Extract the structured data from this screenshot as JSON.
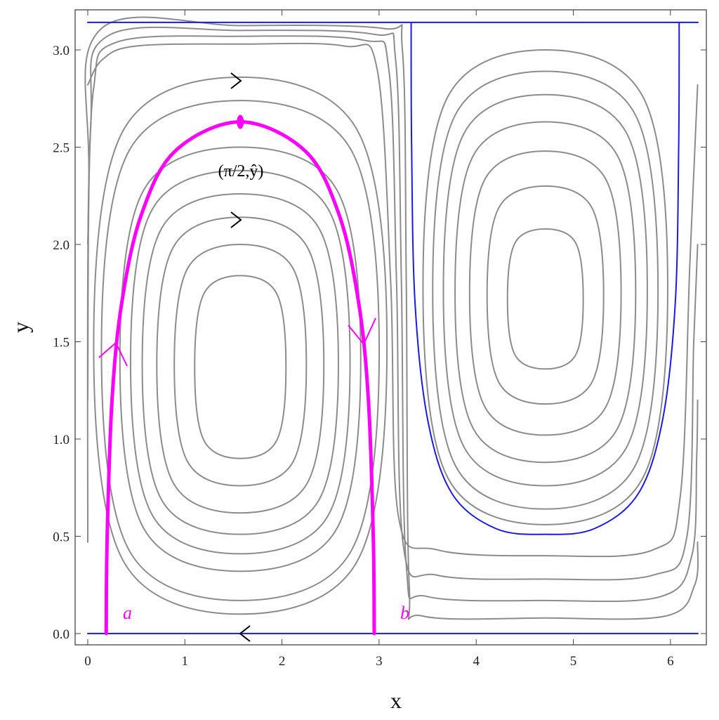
{
  "chart_data": {
    "type": "line",
    "xlabel": "x",
    "ylabel": "y",
    "xlim": [
      -0.13,
      6.37
    ],
    "ylim": [
      -0.058,
      3.206
    ],
    "xticks": [
      0,
      1,
      2,
      3,
      4,
      5,
      6
    ],
    "yticks": [
      {
        "value": 0,
        "label": "0.0"
      },
      {
        "value": 0.5,
        "label": "0.5"
      },
      {
        "value": 1,
        "label": "1.0"
      },
      {
        "value": 1.5,
        "label": "1.5"
      },
      {
        "value": 2,
        "label": "2.0"
      },
      {
        "value": 2.5,
        "label": "2.5"
      },
      {
        "value": 3,
        "label": "3.0"
      }
    ],
    "annotations": [
      "a",
      "b"
    ],
    "marked_point": {
      "x": 1.571,
      "y": 2.63,
      "label": "(π/2,ŷ)",
      "color": "#ff00ff"
    },
    "series": [
      {
        "color": "#8c8c8c",
        "width": 2,
        "closed": true,
        "x": [
          2.041,
          1.947,
          1.571,
          1.195,
          1.101,
          1.195,
          1.571,
          1.947
        ],
        "y": [
          1.37,
          1.746,
          1.84,
          1.746,
          1.37,
          0.994,
          0.9,
          0.994
        ]
      },
      {
        "color": "#8c8c8c",
        "width": 2,
        "closed": true,
        "x": [
          2.251,
          2.115,
          1.571,
          1.027,
          0.891,
          1.027,
          1.571,
          2.115
        ],
        "y": [
          1.38,
          1.876,
          2.0,
          1.876,
          1.38,
          0.884,
          0.76,
          0.884
        ]
      },
      {
        "color": "#8c8c8c",
        "width": 2,
        "closed": true,
        "x": [
          2.431,
          2.259,
          1.571,
          0.883,
          0.711,
          0.883,
          1.571,
          2.259
        ],
        "y": [
          1.38,
          1.988,
          2.14,
          1.988,
          1.38,
          0.772,
          0.62,
          0.772
        ]
      },
      {
        "color": "#8c8c8c",
        "width": 2,
        "closed": true,
        "x": [
          2.581,
          2.379,
          1.571,
          0.763,
          0.561,
          0.763,
          1.571,
          2.379
        ],
        "y": [
          1.385,
          2.085,
          2.26,
          2.085,
          1.385,
          0.685,
          0.51,
          0.685
        ]
      },
      {
        "color": "#8c8c8c",
        "width": 2,
        "closed": true,
        "x": [
          2.701,
          2.475,
          1.571,
          0.667,
          0.441,
          0.667,
          1.571,
          2.475
        ],
        "y": [
          1.395,
          2.183,
          2.38,
          2.183,
          1.395,
          0.607,
          0.41,
          0.607
        ]
      },
      {
        "color": "#8c8c8c",
        "width": 2,
        "closed": true,
        "x": [
          2.811,
          2.563,
          1.571,
          0.579,
          0.331,
          0.579,
          1.571,
          2.563
        ],
        "y": [
          1.41,
          2.282,
          2.5,
          2.282,
          1.41,
          0.538,
          0.32,
          0.538
        ]
      },
      {
        "color": "#8c8c8c",
        "width": 2,
        "closed": true,
        "x": [
          3.001,
          2.715,
          1.571,
          0.427,
          0.141,
          0.427,
          1.571,
          2.715
        ],
        "y": [
          1.455,
          2.483,
          2.74,
          2.483,
          1.455,
          0.427,
          0.17,
          0.427
        ]
      },
      {
        "color": "#8c8c8c",
        "width": 2,
        "closed": true,
        "x": [
          3.081,
          2.779,
          1.571,
          0.363,
          0.061,
          0.363,
          1.571,
          2.779
        ],
        "y": [
          1.48,
          2.584,
          2.86,
          2.584,
          1.48,
          0.376,
          0.1,
          0.376
        ]
      },
      {
        "color": "#8c8c8c",
        "width": 2,
        "closed": true,
        "x": [
          5.102,
          5.024,
          4.712,
          4.4,
          4.322,
          4.4,
          4.712,
          5.024
        ],
        "y": [
          1.72,
          2.008,
          2.08,
          2.008,
          1.72,
          1.432,
          1.36,
          1.432
        ]
      },
      {
        "color": "#8c8c8c",
        "width": 2,
        "closed": true,
        "x": [
          5.312,
          5.192,
          4.712,
          4.232,
          4.112,
          4.232,
          4.712,
          5.192
        ],
        "y": [
          1.74,
          2.188,
          2.3,
          2.188,
          1.74,
          1.292,
          1.18,
          1.292
        ]
      },
      {
        "color": "#8c8c8c",
        "width": 2,
        "closed": true,
        "x": [
          5.492,
          5.336,
          4.712,
          4.088,
          3.932,
          4.088,
          4.712,
          5.336
        ],
        "y": [
          1.75,
          2.334,
          2.48,
          2.334,
          1.75,
          1.166,
          1.02,
          1.166
        ]
      },
      {
        "color": "#8c8c8c",
        "width": 2,
        "closed": true,
        "x": [
          5.642,
          5.456,
          4.712,
          3.968,
          3.782,
          3.968,
          4.712,
          5.456
        ],
        "y": [
          1.755,
          2.455,
          2.63,
          2.455,
          1.755,
          1.055,
          0.88,
          1.055
        ]
      },
      {
        "color": "#8c8c8c",
        "width": 2,
        "closed": true,
        "x": [
          5.762,
          5.552,
          4.712,
          3.872,
          3.662,
          3.872,
          4.712,
          5.552
        ],
        "y": [
          1.765,
          2.569,
          2.77,
          2.569,
          1.765,
          0.961,
          0.76,
          0.961
        ]
      },
      {
        "color": "#8c8c8c",
        "width": 2,
        "closed": true,
        "x": [
          5.872,
          5.64,
          4.712,
          3.784,
          3.552,
          3.784,
          4.712,
          5.64
        ],
        "y": [
          1.765,
          2.665,
          2.89,
          2.665,
          1.765,
          0.865,
          0.64,
          0.865
        ]
      },
      {
        "color": "#8c8c8c",
        "width": 2,
        "closed": true,
        "x": [
          5.972,
          5.72,
          4.712,
          3.704,
          3.452,
          3.704,
          4.712,
          5.72
        ],
        "y": [
          1.78,
          2.756,
          3.0,
          2.756,
          1.78,
          0.804,
          0.56,
          0.804
        ]
      },
      {
        "color": "#8c8c8c",
        "width": 2,
        "closed": false,
        "x": [
          0,
          0.15,
          0.5,
          1.571,
          2.64,
          2.98,
          3.12,
          3.2,
          3.6,
          4.712,
          5.82,
          6.1,
          6.2,
          6.28
        ],
        "y": [
          2.82,
          2.95,
          3.02,
          3.03,
          3.02,
          2.9,
          1.8,
          0.6,
          0.43,
          0.4,
          0.43,
          0.7,
          1.9,
          2.82
        ]
      },
      {
        "color": "#8c8c8c",
        "width": 2,
        "closed": false,
        "x": [
          0,
          0.06,
          0.3,
          1.571,
          2.84,
          3.1,
          3.18,
          3.25,
          3.6,
          4.712,
          5.82,
          6.17,
          6.24,
          6.28
        ],
        "y": [
          2.0,
          2.8,
          3.04,
          3.07,
          3.05,
          2.9,
          1.8,
          0.45,
          0.3,
          0.28,
          0.3,
          0.5,
          1.5,
          2.0
        ]
      },
      {
        "color": "#8c8c8c",
        "width": 2,
        "closed": false,
        "x": [
          0,
          0.03,
          0.2,
          1.571,
          2.95,
          3.17,
          3.23,
          3.28,
          3.5,
          4.712,
          5.9,
          6.22,
          6.27,
          6.28
        ],
        "y": [
          1.2,
          2.6,
          3.07,
          3.1,
          3.08,
          2.95,
          1.8,
          0.35,
          0.19,
          0.17,
          0.19,
          0.4,
          0.9,
          1.2
        ]
      },
      {
        "color": "#8c8c8c",
        "width": 2,
        "closed": false,
        "x": [
          0,
          0.01,
          0.12,
          1.571,
          3.05,
          3.24,
          3.28,
          3.31,
          3.45,
          4.712,
          5.95,
          6.25,
          6.28
        ],
        "y": [
          0.47,
          2.3,
          3.1,
          3.125,
          3.11,
          3.0,
          1.8,
          0.25,
          0.09,
          0.08,
          0.09,
          0.25,
          0.47
        ]
      },
      {
        "color": "#1a1ae6",
        "width": 2,
        "closed": false,
        "x": [
          0,
          6.283
        ],
        "y": [
          3.1416,
          3.1416
        ]
      },
      {
        "color": "#1a1ae6",
        "width": 2,
        "closed": false,
        "x": [
          0,
          6.283
        ],
        "y": [
          0,
          0
        ]
      },
      {
        "color": "#1a1ae6",
        "width": 2,
        "closed": false,
        "x": [
          3.33,
          3.335,
          3.37,
          3.5,
          3.75,
          4.2,
          4.712,
          5.22,
          5.67,
          5.92,
          6.05,
          6.085,
          6.09
        ],
        "y": [
          3.1416,
          2.5,
          1.7,
          1.1,
          0.72,
          0.54,
          0.51,
          0.54,
          0.72,
          1.1,
          1.7,
          2.5,
          3.1416
        ]
      },
      {
        "color": "#ff00ff",
        "width": 5,
        "closed": false,
        "x": [
          0.19,
          0.2,
          0.25,
          0.35,
          0.55,
          0.9,
          1.571,
          2.24,
          2.59,
          2.79,
          2.89,
          2.94,
          2.95
        ],
        "y": [
          0,
          0.5,
          1.2,
          1.7,
          2.15,
          2.48,
          2.63,
          2.48,
          2.15,
          1.7,
          1.2,
          0.5,
          0
        ]
      }
    ]
  }
}
